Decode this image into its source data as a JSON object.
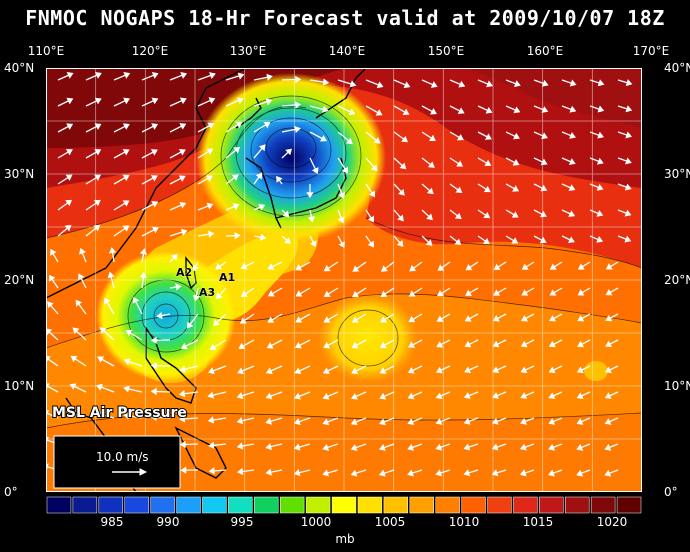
{
  "title": "FNMOC NOGAPS 18-Hr Forecast valid at 2009/10/07 18Z",
  "lon_labels": [
    "110°E",
    "120°E",
    "130°E",
    "140°E",
    "150°E",
    "160°E",
    "170°E"
  ],
  "lat_labels": [
    "40°N",
    "30°N",
    "20°N",
    "10°N",
    "0°"
  ],
  "overlay_label": "MSL Air Pressure",
  "wind_key": "10.0 m/s",
  "storm_markers": [
    "A1",
    "A2",
    "A3"
  ],
  "colorbar": {
    "ticks": [
      "985",
      "990",
      "995",
      "1000",
      "1005",
      "1010",
      "1015",
      "1020"
    ],
    "unit": "mb",
    "colors": [
      "#000060",
      "#0a1a90",
      "#1030c0",
      "#1848e0",
      "#2070f0",
      "#1aa0f8",
      "#10c8f0",
      "#10e0c0",
      "#10d060",
      "#60e000",
      "#c0f000",
      "#ffff00",
      "#ffe000",
      "#ffc000",
      "#ffa000",
      "#ff8000",
      "#ff6000",
      "#f04010",
      "#e02818",
      "#c01818",
      "#a01010",
      "#800808",
      "#600000"
    ]
  },
  "colors": {
    "background": "#000000",
    "text": "#ffffff",
    "vectors": "#ffffff"
  }
}
